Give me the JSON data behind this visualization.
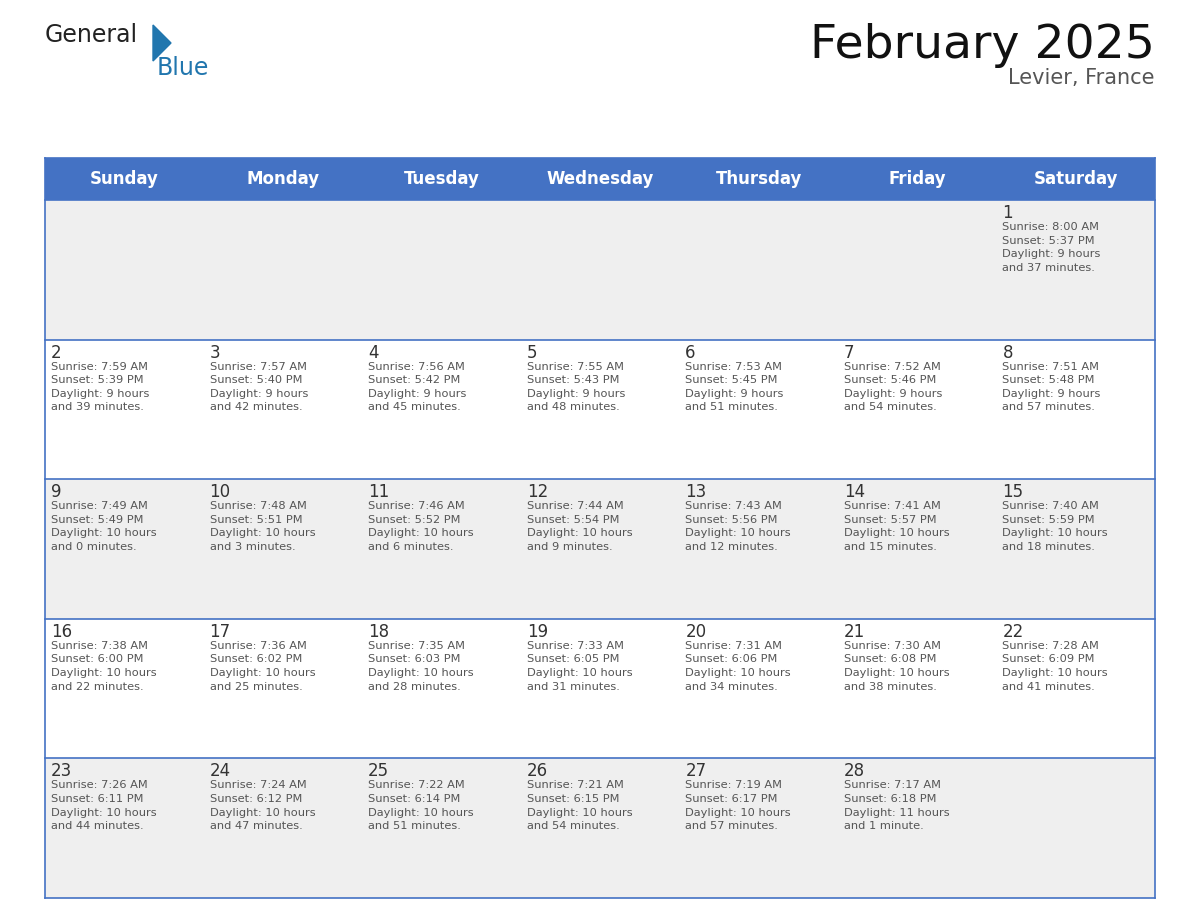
{
  "title": "February 2025",
  "subtitle": "Levier, France",
  "days_of_week": [
    "Sunday",
    "Monday",
    "Tuesday",
    "Wednesday",
    "Thursday",
    "Friday",
    "Saturday"
  ],
  "header_bg": "#4472C4",
  "header_text_color": "#FFFFFF",
  "cell_bg_odd": "#EFEFEF",
  "cell_bg_even": "#FFFFFF",
  "day_number_color": "#333333",
  "text_color": "#555555",
  "line_color": "#4472C4",
  "calendar_data": [
    [
      null,
      null,
      null,
      null,
      null,
      null,
      {
        "day": "1",
        "sunrise": "Sunrise: 8:00 AM",
        "sunset": "Sunset: 5:37 PM",
        "daylight": "Daylight: 9 hours\nand 37 minutes."
      }
    ],
    [
      {
        "day": "2",
        "sunrise": "Sunrise: 7:59 AM",
        "sunset": "Sunset: 5:39 PM",
        "daylight": "Daylight: 9 hours\nand 39 minutes."
      },
      {
        "day": "3",
        "sunrise": "Sunrise: 7:57 AM",
        "sunset": "Sunset: 5:40 PM",
        "daylight": "Daylight: 9 hours\nand 42 minutes."
      },
      {
        "day": "4",
        "sunrise": "Sunrise: 7:56 AM",
        "sunset": "Sunset: 5:42 PM",
        "daylight": "Daylight: 9 hours\nand 45 minutes."
      },
      {
        "day": "5",
        "sunrise": "Sunrise: 7:55 AM",
        "sunset": "Sunset: 5:43 PM",
        "daylight": "Daylight: 9 hours\nand 48 minutes."
      },
      {
        "day": "6",
        "sunrise": "Sunrise: 7:53 AM",
        "sunset": "Sunset: 5:45 PM",
        "daylight": "Daylight: 9 hours\nand 51 minutes."
      },
      {
        "day": "7",
        "sunrise": "Sunrise: 7:52 AM",
        "sunset": "Sunset: 5:46 PM",
        "daylight": "Daylight: 9 hours\nand 54 minutes."
      },
      {
        "day": "8",
        "sunrise": "Sunrise: 7:51 AM",
        "sunset": "Sunset: 5:48 PM",
        "daylight": "Daylight: 9 hours\nand 57 minutes."
      }
    ],
    [
      {
        "day": "9",
        "sunrise": "Sunrise: 7:49 AM",
        "sunset": "Sunset: 5:49 PM",
        "daylight": "Daylight: 10 hours\nand 0 minutes."
      },
      {
        "day": "10",
        "sunrise": "Sunrise: 7:48 AM",
        "sunset": "Sunset: 5:51 PM",
        "daylight": "Daylight: 10 hours\nand 3 minutes."
      },
      {
        "day": "11",
        "sunrise": "Sunrise: 7:46 AM",
        "sunset": "Sunset: 5:52 PM",
        "daylight": "Daylight: 10 hours\nand 6 minutes."
      },
      {
        "day": "12",
        "sunrise": "Sunrise: 7:44 AM",
        "sunset": "Sunset: 5:54 PM",
        "daylight": "Daylight: 10 hours\nand 9 minutes."
      },
      {
        "day": "13",
        "sunrise": "Sunrise: 7:43 AM",
        "sunset": "Sunset: 5:56 PM",
        "daylight": "Daylight: 10 hours\nand 12 minutes."
      },
      {
        "day": "14",
        "sunrise": "Sunrise: 7:41 AM",
        "sunset": "Sunset: 5:57 PM",
        "daylight": "Daylight: 10 hours\nand 15 minutes."
      },
      {
        "day": "15",
        "sunrise": "Sunrise: 7:40 AM",
        "sunset": "Sunset: 5:59 PM",
        "daylight": "Daylight: 10 hours\nand 18 minutes."
      }
    ],
    [
      {
        "day": "16",
        "sunrise": "Sunrise: 7:38 AM",
        "sunset": "Sunset: 6:00 PM",
        "daylight": "Daylight: 10 hours\nand 22 minutes."
      },
      {
        "day": "17",
        "sunrise": "Sunrise: 7:36 AM",
        "sunset": "Sunset: 6:02 PM",
        "daylight": "Daylight: 10 hours\nand 25 minutes."
      },
      {
        "day": "18",
        "sunrise": "Sunrise: 7:35 AM",
        "sunset": "Sunset: 6:03 PM",
        "daylight": "Daylight: 10 hours\nand 28 minutes."
      },
      {
        "day": "19",
        "sunrise": "Sunrise: 7:33 AM",
        "sunset": "Sunset: 6:05 PM",
        "daylight": "Daylight: 10 hours\nand 31 minutes."
      },
      {
        "day": "20",
        "sunrise": "Sunrise: 7:31 AM",
        "sunset": "Sunset: 6:06 PM",
        "daylight": "Daylight: 10 hours\nand 34 minutes."
      },
      {
        "day": "21",
        "sunrise": "Sunrise: 7:30 AM",
        "sunset": "Sunset: 6:08 PM",
        "daylight": "Daylight: 10 hours\nand 38 minutes."
      },
      {
        "day": "22",
        "sunrise": "Sunrise: 7:28 AM",
        "sunset": "Sunset: 6:09 PM",
        "daylight": "Daylight: 10 hours\nand 41 minutes."
      }
    ],
    [
      {
        "day": "23",
        "sunrise": "Sunrise: 7:26 AM",
        "sunset": "Sunset: 6:11 PM",
        "daylight": "Daylight: 10 hours\nand 44 minutes."
      },
      {
        "day": "24",
        "sunrise": "Sunrise: 7:24 AM",
        "sunset": "Sunset: 6:12 PM",
        "daylight": "Daylight: 10 hours\nand 47 minutes."
      },
      {
        "day": "25",
        "sunrise": "Sunrise: 7:22 AM",
        "sunset": "Sunset: 6:14 PM",
        "daylight": "Daylight: 10 hours\nand 51 minutes."
      },
      {
        "day": "26",
        "sunrise": "Sunrise: 7:21 AM",
        "sunset": "Sunset: 6:15 PM",
        "daylight": "Daylight: 10 hours\nand 54 minutes."
      },
      {
        "day": "27",
        "sunrise": "Sunrise: 7:19 AM",
        "sunset": "Sunset: 6:17 PM",
        "daylight": "Daylight: 10 hours\nand 57 minutes."
      },
      {
        "day": "28",
        "sunrise": "Sunrise: 7:17 AM",
        "sunset": "Sunset: 6:18 PM",
        "daylight": "Daylight: 11 hours\nand 1 minute."
      },
      null
    ]
  ],
  "logo_general_color": "#222222",
  "logo_blue_color": "#2176AE",
  "title_fontsize": 34,
  "subtitle_fontsize": 15,
  "header_fontsize": 12,
  "day_num_fontsize": 12,
  "cell_text_fontsize": 8.2
}
